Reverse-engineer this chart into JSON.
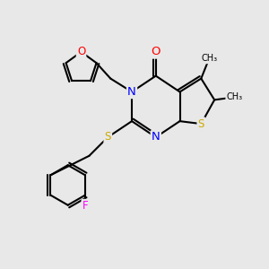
{
  "bg_color": "#e8e8e8",
  "atom_colors": {
    "C": "#000000",
    "N": "#0000ff",
    "O": "#ff0000",
    "S": "#ccaa00",
    "F": "#ff00ff"
  },
  "bond_color": "#000000",
  "figsize": [
    3.0,
    3.0
  ],
  "dpi": 100
}
